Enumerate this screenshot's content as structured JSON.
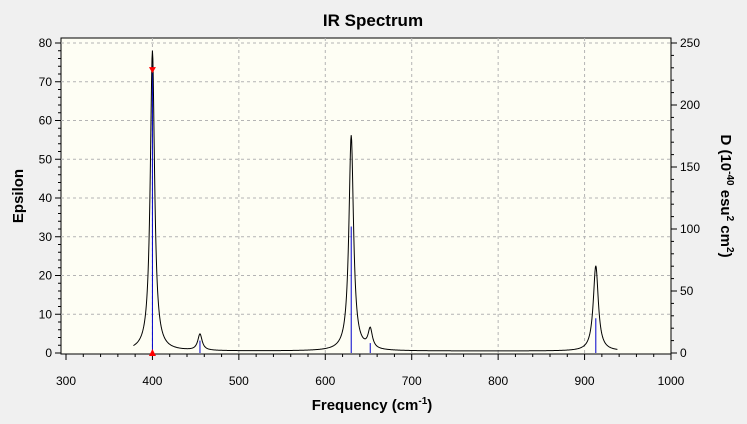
{
  "chart_data": {
    "type": "line",
    "title": "IR Spectrum",
    "xlabel": {
      "text": "Frequency (cm",
      "sup": "-1",
      "tail": ")"
    },
    "ylabel_left": "Epsilon",
    "ylabel_right": {
      "p1": "D (10",
      "s1": "-40",
      "p2": " esu",
      "s2": "2",
      "p3": " cm",
      "s3": "2",
      "p4": ")"
    },
    "xlim": [
      300,
      1000
    ],
    "ylim_left": [
      0,
      80
    ],
    "ylim_right": [
      0,
      250
    ],
    "x_ticks": [
      "300",
      "400",
      "500",
      "600",
      "700",
      "800",
      "900",
      "1000"
    ],
    "y_left_ticks": [
      "0",
      "10",
      "20",
      "30",
      "40",
      "50",
      "60",
      "70",
      "80"
    ],
    "y_right_ticks": [
      "0",
      "50",
      "100",
      "150",
      "200",
      "250"
    ],
    "grid": true,
    "background": "#fefef4",
    "spectrum_color": "#000000",
    "stick_color": "#0000cc",
    "marker_color": "#ff0000",
    "spectrum": {
      "x_range": [
        378,
        938
      ],
      "baseline": 0.5,
      "peaks": [
        {
          "center": 400,
          "height": 77.5,
          "hwhm": 3.0
        },
        {
          "center": 455,
          "height": 4.2,
          "hwhm": 3.0
        },
        {
          "center": 630,
          "height": 55.6,
          "hwhm": 3.2
        },
        {
          "center": 652,
          "height": 5.0,
          "hwhm": 3.0
        },
        {
          "center": 913,
          "height": 22.0,
          "hwhm": 3.5
        }
      ]
    },
    "sticks": [
      {
        "x": 400,
        "d": 232
      },
      {
        "x": 455,
        "d": 10
      },
      {
        "x": 630,
        "d": 102
      },
      {
        "x": 652,
        "d": 8
      },
      {
        "x": 913,
        "d": 28
      }
    ],
    "selected_marker": {
      "x": 400,
      "epsilon": 73
    }
  }
}
